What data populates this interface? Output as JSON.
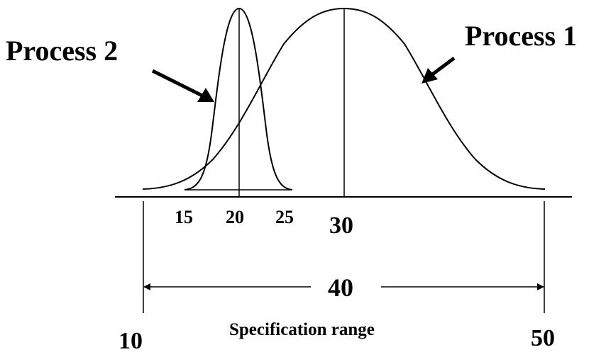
{
  "labels": {
    "process_1": "Process 1",
    "process_2": "Process 2",
    "spec_range": "Specification range",
    "range_width": "40"
  },
  "ticks": {
    "t10": "10",
    "t15": "15",
    "t20": "20",
    "t25": "25",
    "t30": "30",
    "t50": "50"
  },
  "colors": {
    "ink": "#000000",
    "background": "#ffffff"
  },
  "arrows": {
    "left": "arrow-left-icon",
    "right": "arrow-right-icon"
  }
}
